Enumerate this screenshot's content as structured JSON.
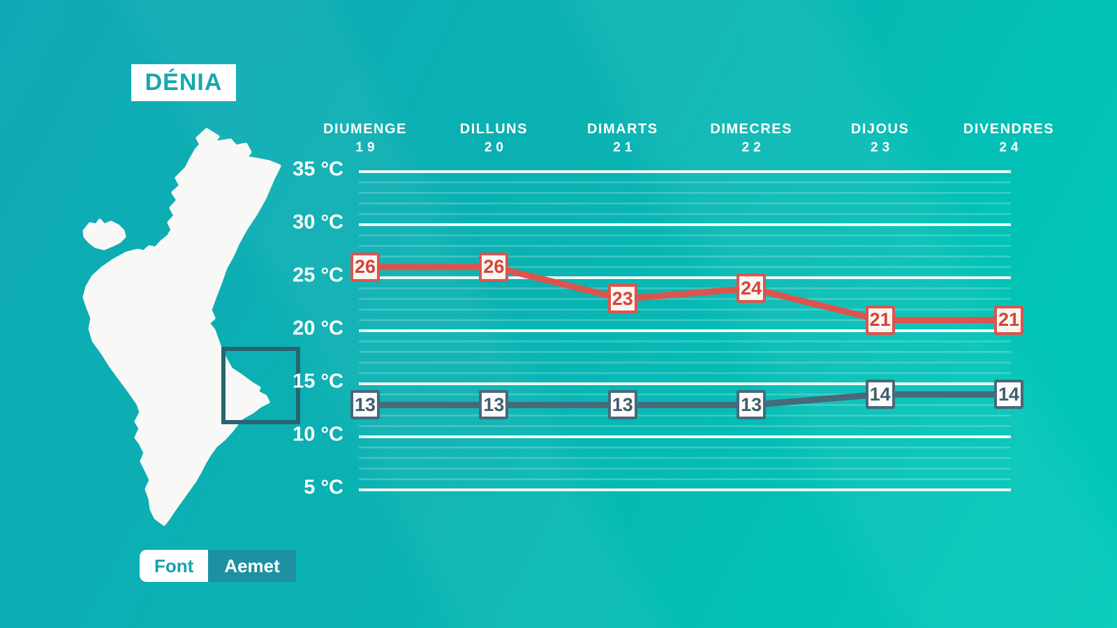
{
  "location": {
    "title": "DÉNIA"
  },
  "source": {
    "label": "Font",
    "value": "Aemet"
  },
  "colors": {
    "background_top_left": "#0fa9b5",
    "background_bottom_right": "#00c9b9",
    "title_text": "#16a8ad",
    "map_fill": "#f8f8f6",
    "map_highlight_stroke": "#2a6371",
    "grid_major": "rgba(255,255,255,0.92)",
    "grid_minor": "rgba(255,255,255,0.22)",
    "axis_text": "#ffffff",
    "source_label_bg": "#ffffff",
    "source_value_bg": "#1d91a1"
  },
  "chart_data": {
    "type": "line",
    "title": "",
    "xlabel": "",
    "ylabel": "",
    "categories": [
      {
        "name": "DIUMENGE",
        "date": "19"
      },
      {
        "name": "DILLUNS",
        "date": "20"
      },
      {
        "name": "DIMARTS",
        "date": "21"
      },
      {
        "name": "DIMECRES",
        "date": "22"
      },
      {
        "name": "DIJOUS",
        "date": "23"
      },
      {
        "name": "DIVENDRES",
        "date": "24"
      }
    ],
    "series": [
      {
        "name": "max-temperature",
        "values": [
          26,
          26,
          23,
          24,
          21,
          21
        ],
        "color": "#dd544d",
        "box_bg": "#faf6f0",
        "text_color": "#d4423c"
      },
      {
        "name": "min-temperature",
        "values": [
          13,
          13,
          13,
          13,
          14,
          14
        ],
        "color": "#47697b",
        "box_bg": "#fbfcfb",
        "text_color": "#3f5d70"
      }
    ],
    "y_axis": {
      "unit": "°C",
      "ticks": [
        35,
        30,
        25,
        20,
        15,
        10,
        5
      ],
      "min": 5,
      "max": 35,
      "major_step": 5,
      "minor_step": 1
    },
    "grid": true,
    "legend": "none"
  }
}
